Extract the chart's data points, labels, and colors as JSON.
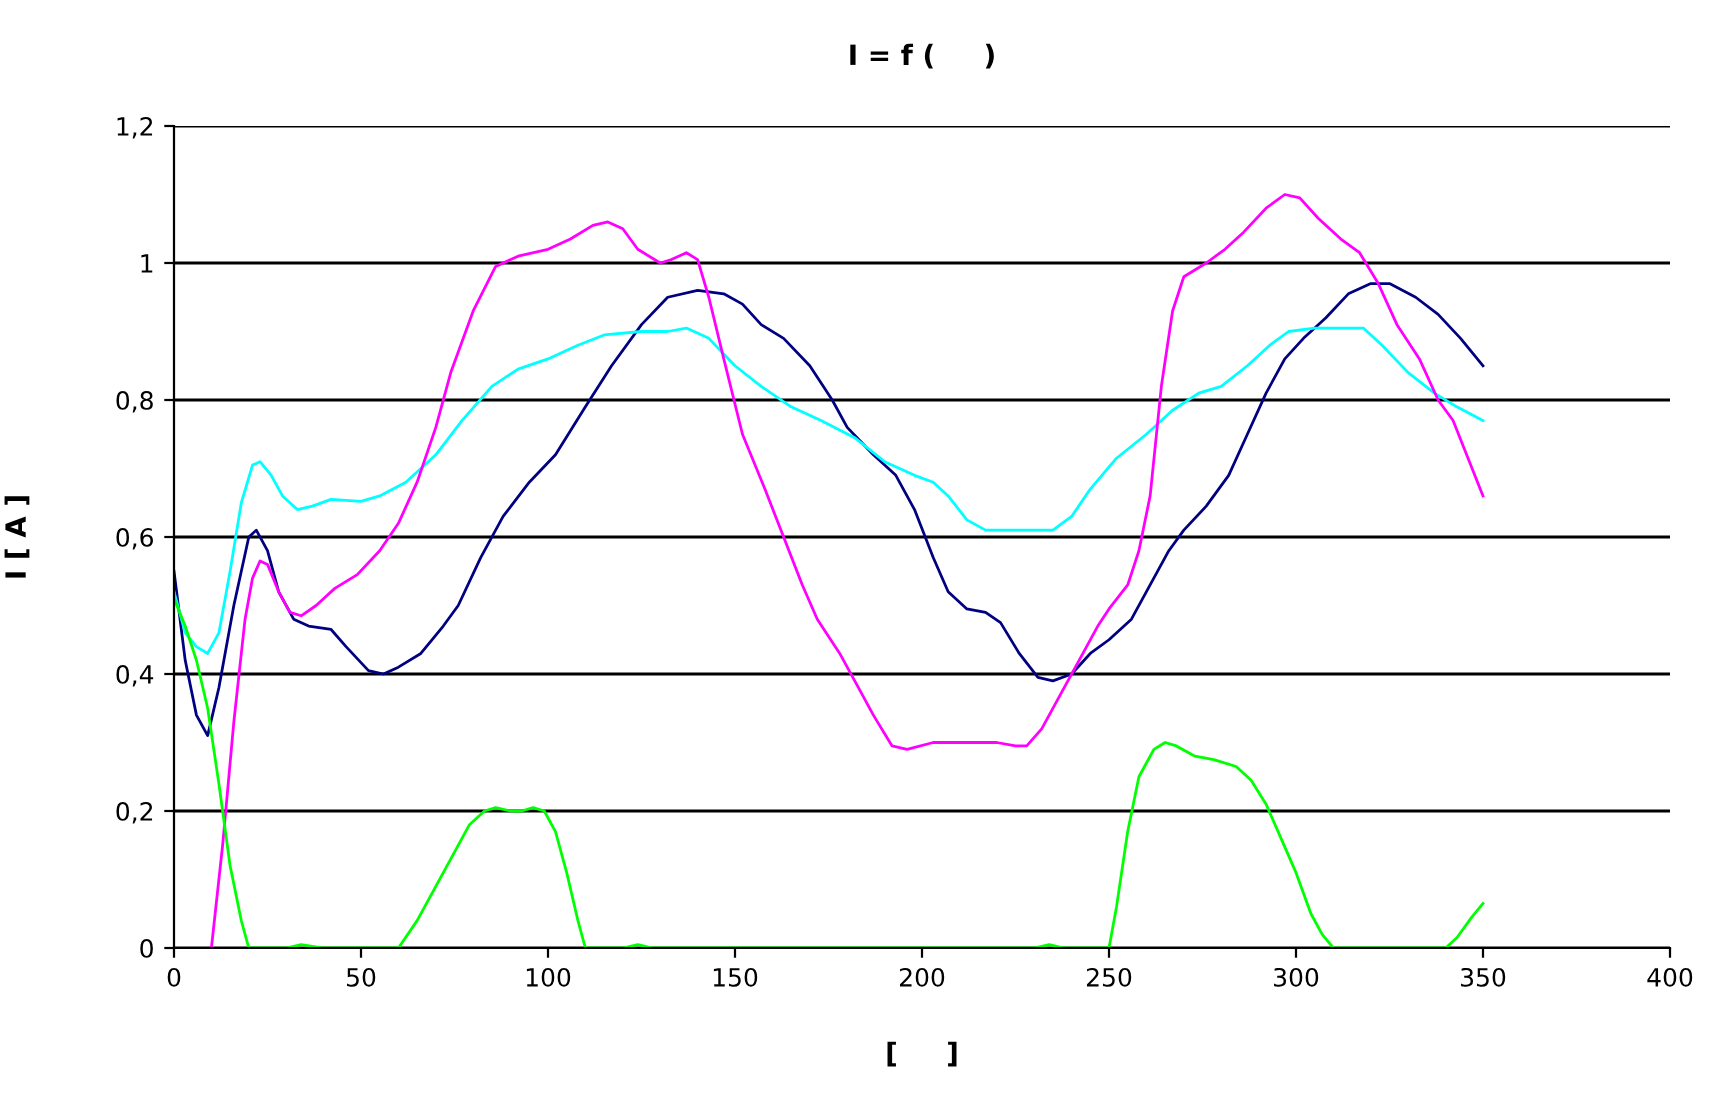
{
  "chart_data": {
    "type": "line",
    "title": "I = f (     )",
    "xlabel": "[     ]",
    "ylabel": "I [ A ]",
    "xlim": [
      0,
      400
    ],
    "xticks": [
      0,
      50,
      100,
      150,
      200,
      250,
      300,
      350,
      400
    ],
    "ylim": [
      0,
      1.2
    ],
    "yticks": [
      0,
      {
        "value": 0.2,
        "label": "0,2"
      },
      {
        "value": 0.4,
        "label": "0,4"
      },
      {
        "value": 0.6,
        "label": "0,6"
      },
      {
        "value": 0.8,
        "label": "0,8"
      },
      1,
      {
        "value": 1.2,
        "label": "1,2"
      }
    ],
    "grid": "y",
    "legend": false,
    "marker": "none",
    "line_style": "solid",
    "series": [
      {
        "color": "#000080",
        "x": [
          0,
          3,
          6,
          9,
          12,
          16,
          20,
          22,
          25,
          28,
          32,
          36,
          42,
          46,
          52,
          56,
          60,
          66,
          72,
          76,
          82,
          88,
          95,
          102,
          110,
          117,
          125,
          132,
          140,
          147,
          152,
          157,
          163,
          170,
          176,
          180,
          187,
          193,
          198,
          203,
          207,
          212,
          217,
          221,
          226,
          231,
          235,
          240,
          245,
          250,
          256,
          261,
          266,
          270,
          276,
          282,
          287,
          292,
          297,
          302,
          308,
          314,
          320,
          325,
          332,
          338,
          344,
          350
        ],
        "values": [
          0.55,
          0.42,
          0.34,
          0.31,
          0.38,
          0.5,
          0.6,
          0.61,
          0.58,
          0.52,
          0.48,
          0.47,
          0.465,
          0.44,
          0.405,
          0.4,
          0.41,
          0.43,
          0.47,
          0.5,
          0.57,
          0.63,
          0.68,
          0.72,
          0.79,
          0.85,
          0.91,
          0.95,
          0.96,
          0.955,
          0.94,
          0.91,
          0.89,
          0.85,
          0.8,
          0.76,
          0.72,
          0.69,
          0.64,
          0.57,
          0.52,
          0.495,
          0.49,
          0.475,
          0.43,
          0.395,
          0.39,
          0.4,
          0.43,
          0.45,
          0.48,
          0.53,
          0.58,
          0.61,
          0.645,
          0.69,
          0.75,
          0.81,
          0.86,
          0.89,
          0.92,
          0.955,
          0.97,
          0.97,
          0.95,
          0.925,
          0.89,
          0.85
        ]
      },
      {
        "color": "#00ffff",
        "x": [
          0,
          3,
          6,
          9,
          12,
          15,
          18,
          21,
          23,
          26,
          29,
          33,
          37,
          42,
          50,
          55,
          62,
          70,
          77,
          85,
          92,
          100,
          108,
          115,
          125,
          132,
          137,
          143,
          150,
          157,
          165,
          173,
          182,
          190,
          198,
          203,
          207,
          212,
          217,
          230,
          235,
          240,
          245,
          252,
          260,
          267,
          274,
          280,
          287,
          293,
          298,
          305,
          312,
          318,
          323,
          330,
          337,
          343,
          350
        ],
        "values": [
          0.52,
          0.46,
          0.44,
          0.43,
          0.46,
          0.55,
          0.65,
          0.705,
          0.71,
          0.69,
          0.66,
          0.64,
          0.645,
          0.655,
          0.652,
          0.66,
          0.68,
          0.72,
          0.77,
          0.82,
          0.845,
          0.86,
          0.88,
          0.895,
          0.9,
          0.9,
          0.905,
          0.89,
          0.85,
          0.82,
          0.79,
          0.77,
          0.745,
          0.71,
          0.69,
          0.68,
          0.66,
          0.625,
          0.61,
          0.61,
          0.61,
          0.63,
          0.67,
          0.715,
          0.75,
          0.785,
          0.81,
          0.82,
          0.85,
          0.88,
          0.9,
          0.905,
          0.905,
          0.905,
          0.88,
          0.84,
          0.81,
          0.79,
          0.77
        ]
      },
      {
        "color": "#ff00ff",
        "x": [
          10,
          13,
          16,
          19,
          21,
          23,
          25,
          28,
          31,
          34,
          38,
          43,
          49,
          55,
          60,
          65,
          70,
          74,
          80,
          86,
          92,
          100,
          106,
          112,
          116,
          120,
          124,
          130,
          133,
          137,
          140,
          143,
          147,
          152,
          158,
          163,
          168,
          172,
          178,
          183,
          187,
          192,
          196,
          203,
          210,
          220,
          225,
          228,
          232,
          237,
          242,
          247,
          250,
          255,
          258,
          261,
          264,
          267,
          270,
          276,
          281,
          286,
          292,
          297,
          301,
          306,
          312,
          317,
          322,
          327,
          333,
          338,
          342,
          346,
          350
        ],
        "values": [
          0.0,
          0.15,
          0.33,
          0.48,
          0.54,
          0.565,
          0.56,
          0.52,
          0.49,
          0.485,
          0.5,
          0.525,
          0.545,
          0.58,
          0.62,
          0.68,
          0.76,
          0.84,
          0.93,
          0.995,
          1.01,
          1.02,
          1.035,
          1.055,
          1.06,
          1.05,
          1.02,
          1.0,
          1.005,
          1.015,
          1.005,
          0.95,
          0.86,
          0.75,
          0.67,
          0.6,
          0.53,
          0.48,
          0.43,
          0.38,
          0.34,
          0.295,
          0.29,
          0.3,
          0.3,
          0.3,
          0.295,
          0.295,
          0.32,
          0.37,
          0.42,
          0.47,
          0.495,
          0.53,
          0.58,
          0.66,
          0.82,
          0.93,
          0.98,
          1.0,
          1.02,
          1.045,
          1.08,
          1.1,
          1.095,
          1.065,
          1.035,
          1.015,
          0.97,
          0.91,
          0.86,
          0.8,
          0.77,
          0.715,
          0.66
        ]
      },
      {
        "color": "#00ff00",
        "x": [
          0,
          3,
          6,
          9,
          12,
          15,
          18,
          20,
          30,
          34,
          40,
          60,
          65,
          70,
          75,
          79,
          83,
          86,
          90,
          93,
          96,
          99,
          102,
          105,
          108,
          110,
          120,
          124,
          128,
          230,
          234,
          238,
          250,
          252,
          255,
          258,
          262,
          265,
          268,
          273,
          278,
          284,
          288,
          292,
          296,
          300,
          304,
          307,
          310,
          340,
          343,
          347,
          350
        ],
        "values": [
          0.51,
          0.47,
          0.42,
          0.35,
          0.24,
          0.12,
          0.04,
          0.0,
          0.0,
          0.005,
          0.0,
          0.0,
          0.04,
          0.09,
          0.14,
          0.18,
          0.2,
          0.205,
          0.2,
          0.2,
          0.205,
          0.2,
          0.17,
          0.11,
          0.04,
          0.0,
          0.0,
          0.005,
          0.0,
          0.0,
          0.005,
          0.0,
          0.0,
          0.06,
          0.17,
          0.25,
          0.29,
          0.3,
          0.295,
          0.28,
          0.275,
          0.265,
          0.245,
          0.21,
          0.16,
          0.11,
          0.05,
          0.02,
          0.0,
          0.0,
          0.015,
          0.045,
          0.065
        ]
      }
    ]
  }
}
